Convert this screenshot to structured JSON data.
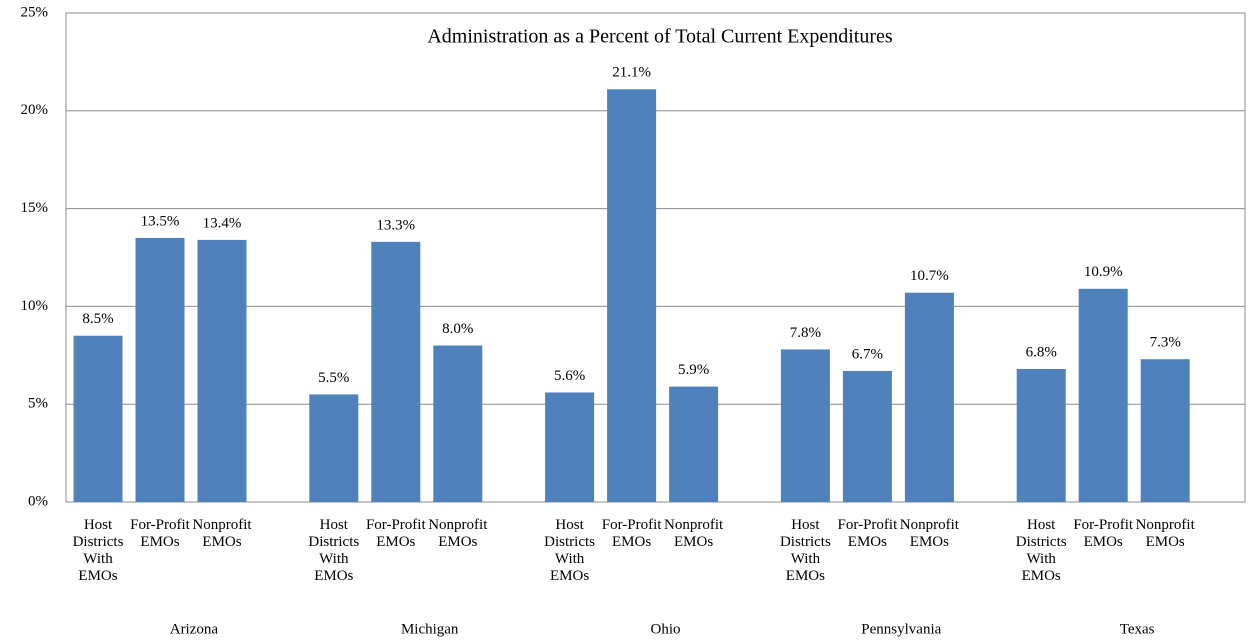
{
  "chart_data": {
    "type": "bar",
    "title": "Administration as a Percent of Total Current Expenditures",
    "categories": [
      "Arizona",
      "Michigan",
      "Ohio",
      "Pennsylvania",
      "Texas"
    ],
    "series": [
      {
        "name": "Host Districts With EMOs",
        "color": "#4f81bd",
        "values": [
          8.5,
          5.5,
          5.6,
          7.8,
          6.8
        ],
        "value_labels": [
          "8.5%",
          "5.5%",
          "5.6%",
          "7.8%",
          "6.8%"
        ]
      },
      {
        "name": "For-Profit EMOs",
        "color": "#4f81bd",
        "values": [
          13.5,
          13.3,
          21.1,
          6.7,
          10.9
        ],
        "value_labels": [
          "13.5%",
          "13.3%",
          "21.1%",
          "6.7%",
          "10.9%"
        ]
      },
      {
        "name": "Nonprofit EMOs",
        "color": "#4f81bd",
        "values": [
          13.4,
          8.0,
          5.9,
          10.7,
          7.3
        ],
        "value_labels": [
          "13.4%",
          "8.0%",
          "5.9%",
          "10.7%",
          "7.3%"
        ]
      }
    ],
    "ylim": [
      0,
      25
    ],
    "yticks": [
      {
        "value": 0,
        "label": "0%"
      },
      {
        "value": 5,
        "label": "5%"
      },
      {
        "value": 10,
        "label": "10%"
      },
      {
        "value": 15,
        "label": "15%"
      },
      {
        "value": 20,
        "label": "20%"
      },
      {
        "value": 25,
        "label": "25%"
      }
    ],
    "grid": true
  }
}
